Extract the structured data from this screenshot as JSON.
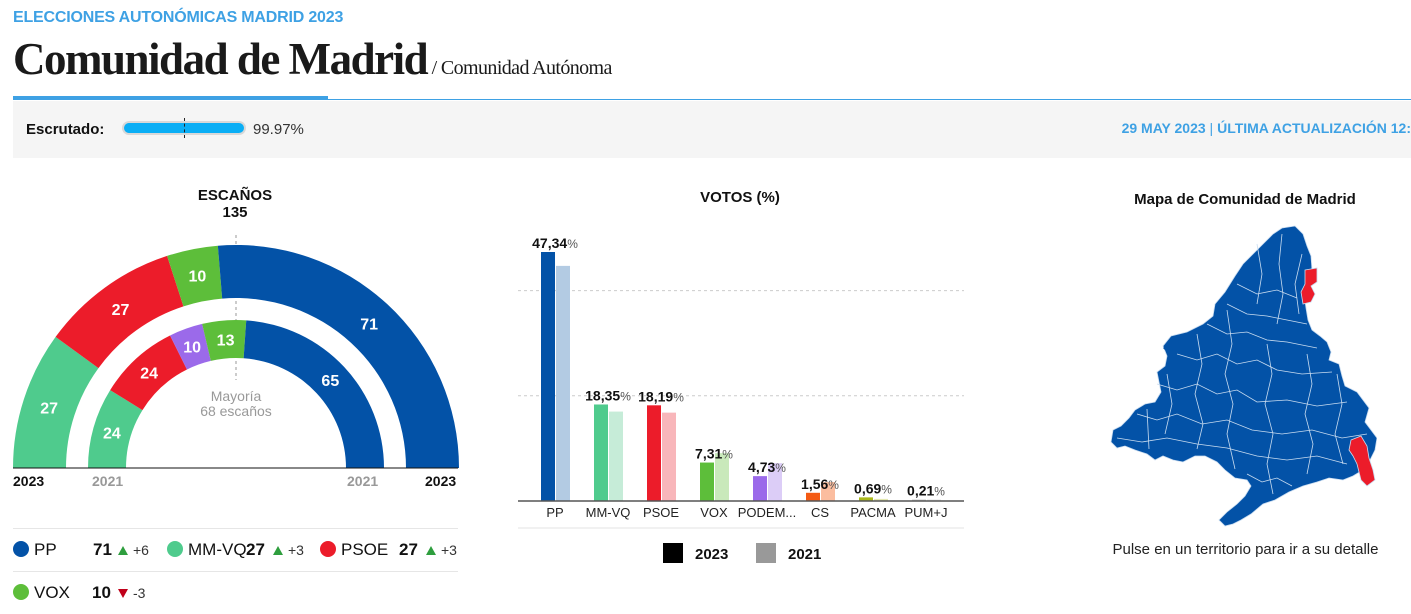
{
  "header": {
    "kicker": "ELECCIONES AUTONÓMICAS MADRID 2023",
    "title": "Comunidad de Madrid",
    "subtitle": "/ Comunidad Autónoma"
  },
  "status": {
    "label": "Escrutado:",
    "value": "99.97%",
    "progress": 99.97,
    "date": "29 MAY 2023",
    "separator": "|",
    "updated": "ÚLTIMA ACTUALIZACIÓN 12:"
  },
  "seats": {
    "title": "ESCAÑOS",
    "total": "135",
    "majority_label": "Mayoría",
    "majority_value": "68 escaños",
    "year_outer": "2023",
    "year_inner": "2021",
    "outer": [
      {
        "party": "MM-VQ",
        "seats": 27,
        "color": "#4fcb8d"
      },
      {
        "party": "PSOE",
        "seats": 27,
        "color": "#ec1c2a"
      },
      {
        "party": "VOX",
        "seats": 10,
        "color": "#5dbe3a"
      },
      {
        "party": "PP",
        "seats": 71,
        "color": "#0352a7"
      }
    ],
    "inner": [
      {
        "party": "MM-VQ",
        "seats": 24,
        "color": "#4fcb8d"
      },
      {
        "party": "PSOE",
        "seats": 24,
        "color": "#ec1c2a"
      },
      {
        "party": "PODEMOS",
        "seats": 10,
        "color": "#9b6aea"
      },
      {
        "party": "VOX",
        "seats": 13,
        "color": "#5dbe3a"
      },
      {
        "party": "PP",
        "seats": 65,
        "color": "#0352a7"
      }
    ],
    "legend": [
      {
        "party": "PP",
        "seats": "71",
        "dir": "up",
        "delta": "+6",
        "color": "#0352a7"
      },
      {
        "party": "MM-VQ",
        "seats": "27",
        "dir": "up",
        "delta": "+3",
        "color": "#4fcb8d"
      },
      {
        "party": "PSOE",
        "seats": "27",
        "dir": "up",
        "delta": "+3",
        "color": "#ec1c2a"
      },
      {
        "party": "VOX",
        "seats": "10",
        "dir": "down",
        "delta": "-3",
        "color": "#5dbe3a"
      }
    ]
  },
  "chart_data": {
    "type": "bar",
    "title": "VOTOS (%)",
    "categories": [
      "PP",
      "MM-VQ",
      "PSOE",
      "VOX",
      "PODEM...",
      "CS",
      "PACMA",
      "PUM+J"
    ],
    "series": [
      {
        "name": "2023",
        "values": [
          47.34,
          18.35,
          18.19,
          7.31,
          4.73,
          1.56,
          0.69,
          0.21
        ],
        "labels": [
          "47,34",
          "18,35",
          "18,19",
          "7,31",
          "4,73",
          "1,56",
          "0,69",
          "0,21"
        ]
      },
      {
        "name": "2021",
        "values": [
          44.7,
          17.0,
          16.8,
          9.1,
          7.2,
          3.6,
          0.4,
          0.2
        ]
      }
    ],
    "colors_2023": [
      "#0352a7",
      "#4fcb8d",
      "#ec1c2a",
      "#5dbe3a",
      "#9b6aea",
      "#f45a13",
      "#a9b81a",
      "#cccccc"
    ],
    "colors_2021": [
      "#b3cbe3",
      "#c6ecd8",
      "#f8b6ba",
      "#c9e9bb",
      "#dccdf7",
      "#fbbd9f",
      "#e3e8b0",
      "#e6e6e6"
    ],
    "percent_sign": "%",
    "ylim": [
      0,
      50
    ],
    "gridlines": [
      20,
      40
    ],
    "legend": [
      {
        "name": "2023",
        "color": "#000000"
      },
      {
        "name": "2021",
        "color": "#999999"
      }
    ],
    "legend_position": "bottom"
  },
  "map": {
    "title": "Mapa de Comunidad de Madrid",
    "hint": "Pulse en un territorio para ir a su detalle",
    "colors": {
      "PP": "#0352a7",
      "PSOE": "#ec1c2a",
      "border": "#c9dcf0"
    }
  }
}
